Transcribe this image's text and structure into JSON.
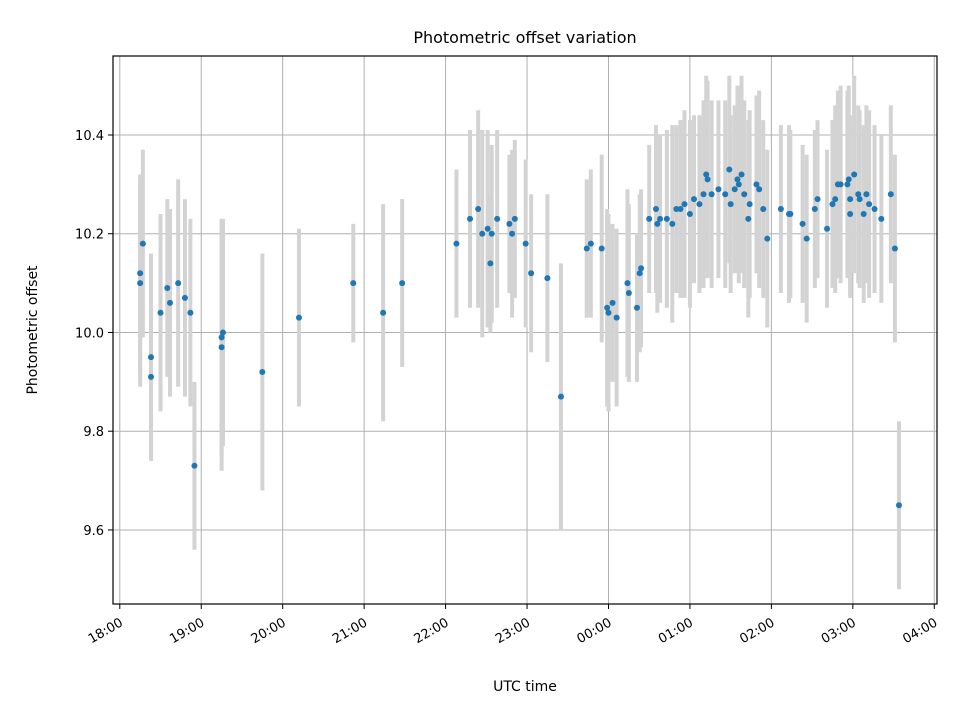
{
  "chart_data": {
    "type": "scatter",
    "title": "Photometric offset variation",
    "xlabel": "UTC time",
    "ylabel": "Photometric offset",
    "x_axis_kind": "time (HH:MM, UTC)",
    "x_range": [
      "17:55",
      "04:02"
    ],
    "ylim": [
      9.45,
      10.56
    ],
    "x_ticks": [
      "18:00",
      "19:00",
      "20:00",
      "21:00",
      "22:00",
      "23:00",
      "00:00",
      "01:00",
      "02:00",
      "03:00",
      "04:00"
    ],
    "y_ticks": [
      9.6,
      9.8,
      10.0,
      10.2,
      10.4
    ],
    "grid": true,
    "marker_color": "#1f77b4",
    "errorbar_color": "#d3d3d3",
    "points": [
      {
        "t": "18:15",
        "y": 10.1,
        "err": 0.21
      },
      {
        "t": "18:15",
        "y": 10.12,
        "err": 0.2
      },
      {
        "t": "18:17",
        "y": 10.18,
        "err": 0.19
      },
      {
        "t": "18:23",
        "y": 9.95,
        "err": 0.21
      },
      {
        "t": "18:23",
        "y": 9.91,
        "err": 0.17
      },
      {
        "t": "18:30",
        "y": 10.04,
        "err": 0.2
      },
      {
        "t": "18:35",
        "y": 10.09,
        "err": 0.18
      },
      {
        "t": "18:37",
        "y": 10.06,
        "err": 0.19
      },
      {
        "t": "18:43",
        "y": 10.1,
        "err": 0.21
      },
      {
        "t": "18:48",
        "y": 10.07,
        "err": 0.2
      },
      {
        "t": "18:52",
        "y": 10.04,
        "err": 0.19
      },
      {
        "t": "18:55",
        "y": 9.73,
        "err": 0.17
      },
      {
        "t": "19:15",
        "y": 9.97,
        "err": 0.25
      },
      {
        "t": "19:15",
        "y": 9.99,
        "err": 0.24
      },
      {
        "t": "19:16",
        "y": 10.0,
        "err": 0.23
      },
      {
        "t": "19:45",
        "y": 9.92,
        "err": 0.24
      },
      {
        "t": "20:12",
        "y": 10.03,
        "err": 0.18
      },
      {
        "t": "20:52",
        "y": 10.1,
        "err": 0.12
      },
      {
        "t": "21:14",
        "y": 10.04,
        "err": 0.22
      },
      {
        "t": "21:28",
        "y": 10.1,
        "err": 0.17
      },
      {
        "t": "22:08",
        "y": 10.18,
        "err": 0.15
      },
      {
        "t": "22:18",
        "y": 10.23,
        "err": 0.18
      },
      {
        "t": "22:24",
        "y": 10.25,
        "err": 0.2
      },
      {
        "t": "22:27",
        "y": 10.2,
        "err": 0.21
      },
      {
        "t": "22:31",
        "y": 10.21,
        "err": 0.2
      },
      {
        "t": "22:33",
        "y": 10.14,
        "err": 0.14
      },
      {
        "t": "22:34",
        "y": 10.2,
        "err": 0.18
      },
      {
        "t": "22:38",
        "y": 10.23,
        "err": 0.18
      },
      {
        "t": "22:47",
        "y": 10.22,
        "err": 0.14
      },
      {
        "t": "22:49",
        "y": 10.2,
        "err": 0.17
      },
      {
        "t": "22:51",
        "y": 10.23,
        "err": 0.16
      },
      {
        "t": "22:59",
        "y": 10.18,
        "err": 0.17
      },
      {
        "t": "23:03",
        "y": 10.12,
        "err": 0.16
      },
      {
        "t": "23:15",
        "y": 10.11,
        "err": 0.17
      },
      {
        "t": "23:25",
        "y": 9.87,
        "err": 0.27
      },
      {
        "t": "23:44",
        "y": 10.17,
        "err": 0.14
      },
      {
        "t": "23:47",
        "y": 10.18,
        "err": 0.15
      },
      {
        "t": "23:55",
        "y": 10.17,
        "err": 0.19
      },
      {
        "t": "23:59",
        "y": 10.05,
        "err": 0.2
      },
      {
        "t": "00:00",
        "y": 10.04,
        "err": 0.2
      },
      {
        "t": "00:03",
        "y": 10.06,
        "err": 0.16
      },
      {
        "t": "00:06",
        "y": 10.03,
        "err": 0.18
      },
      {
        "t": "00:14",
        "y": 10.1,
        "err": 0.19
      },
      {
        "t": "00:15",
        "y": 10.08,
        "err": 0.18
      },
      {
        "t": "00:21",
        "y": 10.05,
        "err": 0.15
      },
      {
        "t": "00:23",
        "y": 10.12,
        "err": 0.16
      },
      {
        "t": "00:24",
        "y": 10.13,
        "err": 0.16
      },
      {
        "t": "00:30",
        "y": 10.23,
        "err": 0.15
      },
      {
        "t": "00:35",
        "y": 10.25,
        "err": 0.17
      },
      {
        "t": "00:36",
        "y": 10.22,
        "err": 0.18
      },
      {
        "t": "00:38",
        "y": 10.23,
        "err": 0.17
      },
      {
        "t": "00:43",
        "y": 10.23,
        "err": 0.18
      },
      {
        "t": "00:47",
        "y": 10.22,
        "err": 0.2
      },
      {
        "t": "00:50",
        "y": 10.25,
        "err": 0.17
      },
      {
        "t": "00:53",
        "y": 10.25,
        "err": 0.18
      },
      {
        "t": "00:56",
        "y": 10.26,
        "err": 0.19
      },
      {
        "t": "01:00",
        "y": 10.24,
        "err": 0.19
      },
      {
        "t": "01:03",
        "y": 10.27,
        "err": 0.17
      },
      {
        "t": "01:07",
        "y": 10.26,
        "err": 0.18
      },
      {
        "t": "01:10",
        "y": 10.28,
        "err": 0.19
      },
      {
        "t": "01:12",
        "y": 10.32,
        "err": 0.2
      },
      {
        "t": "01:13",
        "y": 10.31,
        "err": 0.2
      },
      {
        "t": "01:16",
        "y": 10.28,
        "err": 0.19
      },
      {
        "t": "01:21",
        "y": 10.29,
        "err": 0.18
      },
      {
        "t": "01:26",
        "y": 10.28,
        "err": 0.19
      },
      {
        "t": "01:29",
        "y": 10.33,
        "err": 0.19
      },
      {
        "t": "01:30",
        "y": 10.26,
        "err": 0.18
      },
      {
        "t": "01:33",
        "y": 10.29,
        "err": 0.17
      },
      {
        "t": "01:35",
        "y": 10.31,
        "err": 0.19
      },
      {
        "t": "01:36",
        "y": 10.3,
        "err": 0.2
      },
      {
        "t": "01:38",
        "y": 10.32,
        "err": 0.2
      },
      {
        "t": "01:40",
        "y": 10.28,
        "err": 0.19
      },
      {
        "t": "01:43",
        "y": 10.23,
        "err": 0.2
      },
      {
        "t": "01:44",
        "y": 10.26,
        "err": 0.19
      },
      {
        "t": "01:49",
        "y": 10.3,
        "err": 0.18
      },
      {
        "t": "01:51",
        "y": 10.29,
        "err": 0.2
      },
      {
        "t": "01:54",
        "y": 10.25,
        "err": 0.18
      },
      {
        "t": "01:57",
        "y": 10.19,
        "err": 0.18
      },
      {
        "t": "02:07",
        "y": 10.25,
        "err": 0.17
      },
      {
        "t": "02:13",
        "y": 10.24,
        "err": 0.18
      },
      {
        "t": "02:14",
        "y": 10.24,
        "err": 0.17
      },
      {
        "t": "02:23",
        "y": 10.22,
        "err": 0.16
      },
      {
        "t": "02:26",
        "y": 10.19,
        "err": 0.17
      },
      {
        "t": "02:32",
        "y": 10.25,
        "err": 0.16
      },
      {
        "t": "02:34",
        "y": 10.27,
        "err": 0.16
      },
      {
        "t": "02:41",
        "y": 10.21,
        "err": 0.16
      },
      {
        "t": "02:45",
        "y": 10.26,
        "err": 0.17
      },
      {
        "t": "02:47",
        "y": 10.27,
        "err": 0.19
      },
      {
        "t": "02:49",
        "y": 10.3,
        "err": 0.19
      },
      {
        "t": "02:51",
        "y": 10.3,
        "err": 0.2
      },
      {
        "t": "02:56",
        "y": 10.3,
        "err": 0.19
      },
      {
        "t": "02:57",
        "y": 10.31,
        "err": 0.19
      },
      {
        "t": "02:58",
        "y": 10.27,
        "err": 0.17
      },
      {
        "t": "02:58",
        "y": 10.24,
        "err": 0.17
      },
      {
        "t": "03:01",
        "y": 10.32,
        "err": 0.2
      },
      {
        "t": "03:04",
        "y": 10.28,
        "err": 0.18
      },
      {
        "t": "03:05",
        "y": 10.27,
        "err": 0.18
      },
      {
        "t": "03:08",
        "y": 10.24,
        "err": 0.18
      },
      {
        "t": "03:10",
        "y": 10.28,
        "err": 0.18
      },
      {
        "t": "03:12",
        "y": 10.26,
        "err": 0.19
      },
      {
        "t": "03:16",
        "y": 10.25,
        "err": 0.17
      },
      {
        "t": "03:21",
        "y": 10.23,
        "err": 0.17
      },
      {
        "t": "03:28",
        "y": 10.28,
        "err": 0.18
      },
      {
        "t": "03:31",
        "y": 10.17,
        "err": 0.19
      },
      {
        "t": "03:34",
        "y": 9.65,
        "err": 0.17
      }
    ]
  }
}
